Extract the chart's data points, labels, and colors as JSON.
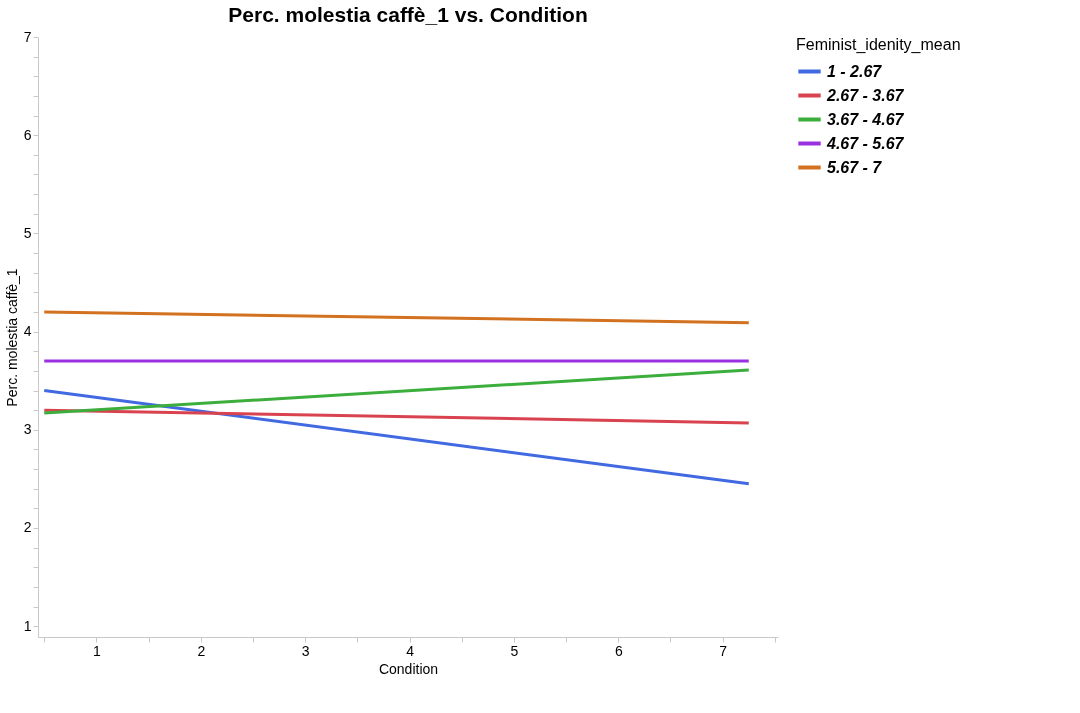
{
  "chart_data": {
    "type": "line",
    "title": "Perc. molestia caffè_1 vs. Condition",
    "xlabel": "Condition",
    "ylabel": "Perc. molestia caffè_1",
    "legend_title": "Feminist_idenity_mean",
    "x": [
      0.5,
      7.25
    ],
    "series": [
      {
        "name": "1 - 2.67",
        "color": "#4169e1",
        "values": [
          3.4,
          2.45
        ]
      },
      {
        "name": "2.67 - 3.67",
        "color": "#d9434f",
        "values": [
          3.2,
          3.07
        ]
      },
      {
        "name": "3.67 - 4.67",
        "color": "#3cae3c",
        "values": [
          3.17,
          3.61
        ]
      },
      {
        "name": "4.67 - 5.67",
        "color": "#9b30e0",
        "values": [
          3.7,
          3.7
        ]
      },
      {
        "name": "5.67 - 7",
        "color": "#d2711f",
        "values": [
          4.2,
          4.09
        ]
      }
    ],
    "xlim": [
      0.44,
      7.53
    ],
    "xticks": [
      {
        "value": 0.5,
        "label": null
      },
      1,
      {
        "value": 1.5,
        "label": null
      },
      2,
      {
        "value": 2.5,
        "label": null
      },
      3,
      {
        "value": 3.5,
        "label": null
      },
      4,
      {
        "value": 4.5,
        "label": null
      },
      5,
      {
        "value": 5.5,
        "label": null
      },
      6,
      {
        "value": 6.5,
        "label": null
      },
      7,
      {
        "value": 7.5,
        "label": null
      }
    ],
    "ylim": [
      0.89,
      7
    ],
    "yticks": [
      1,
      {
        "value": 1.2,
        "label": null
      },
      {
        "value": 1.4,
        "label": null
      },
      {
        "value": 1.6,
        "label": null
      },
      {
        "value": 1.8,
        "label": null
      },
      2,
      {
        "value": 2.2,
        "label": null
      },
      {
        "value": 2.4,
        "label": null
      },
      {
        "value": 2.6,
        "label": null
      },
      {
        "value": 2.8,
        "label": null
      },
      3,
      {
        "value": 3.2,
        "label": null
      },
      {
        "value": 3.4,
        "label": null
      },
      {
        "value": 3.6,
        "label": null
      },
      {
        "value": 3.8,
        "label": null
      },
      4,
      {
        "value": 4.2,
        "label": null
      },
      {
        "value": 4.4,
        "label": null
      },
      {
        "value": 4.6,
        "label": null
      },
      {
        "value": 4.8,
        "label": null
      },
      5,
      {
        "value": 5.2,
        "label": null
      },
      {
        "value": 5.4,
        "label": null
      },
      {
        "value": 5.6,
        "label": null
      },
      {
        "value": 5.8,
        "label": null
      },
      6,
      {
        "value": 6.2,
        "label": null
      },
      {
        "value": 6.4,
        "label": null
      },
      {
        "value": 6.6,
        "label": null
      },
      {
        "value": 6.8,
        "label": null
      },
      7
    ],
    "grid": false,
    "legend": "top right",
    "marker": "none",
    "line_style": "solid"
  }
}
